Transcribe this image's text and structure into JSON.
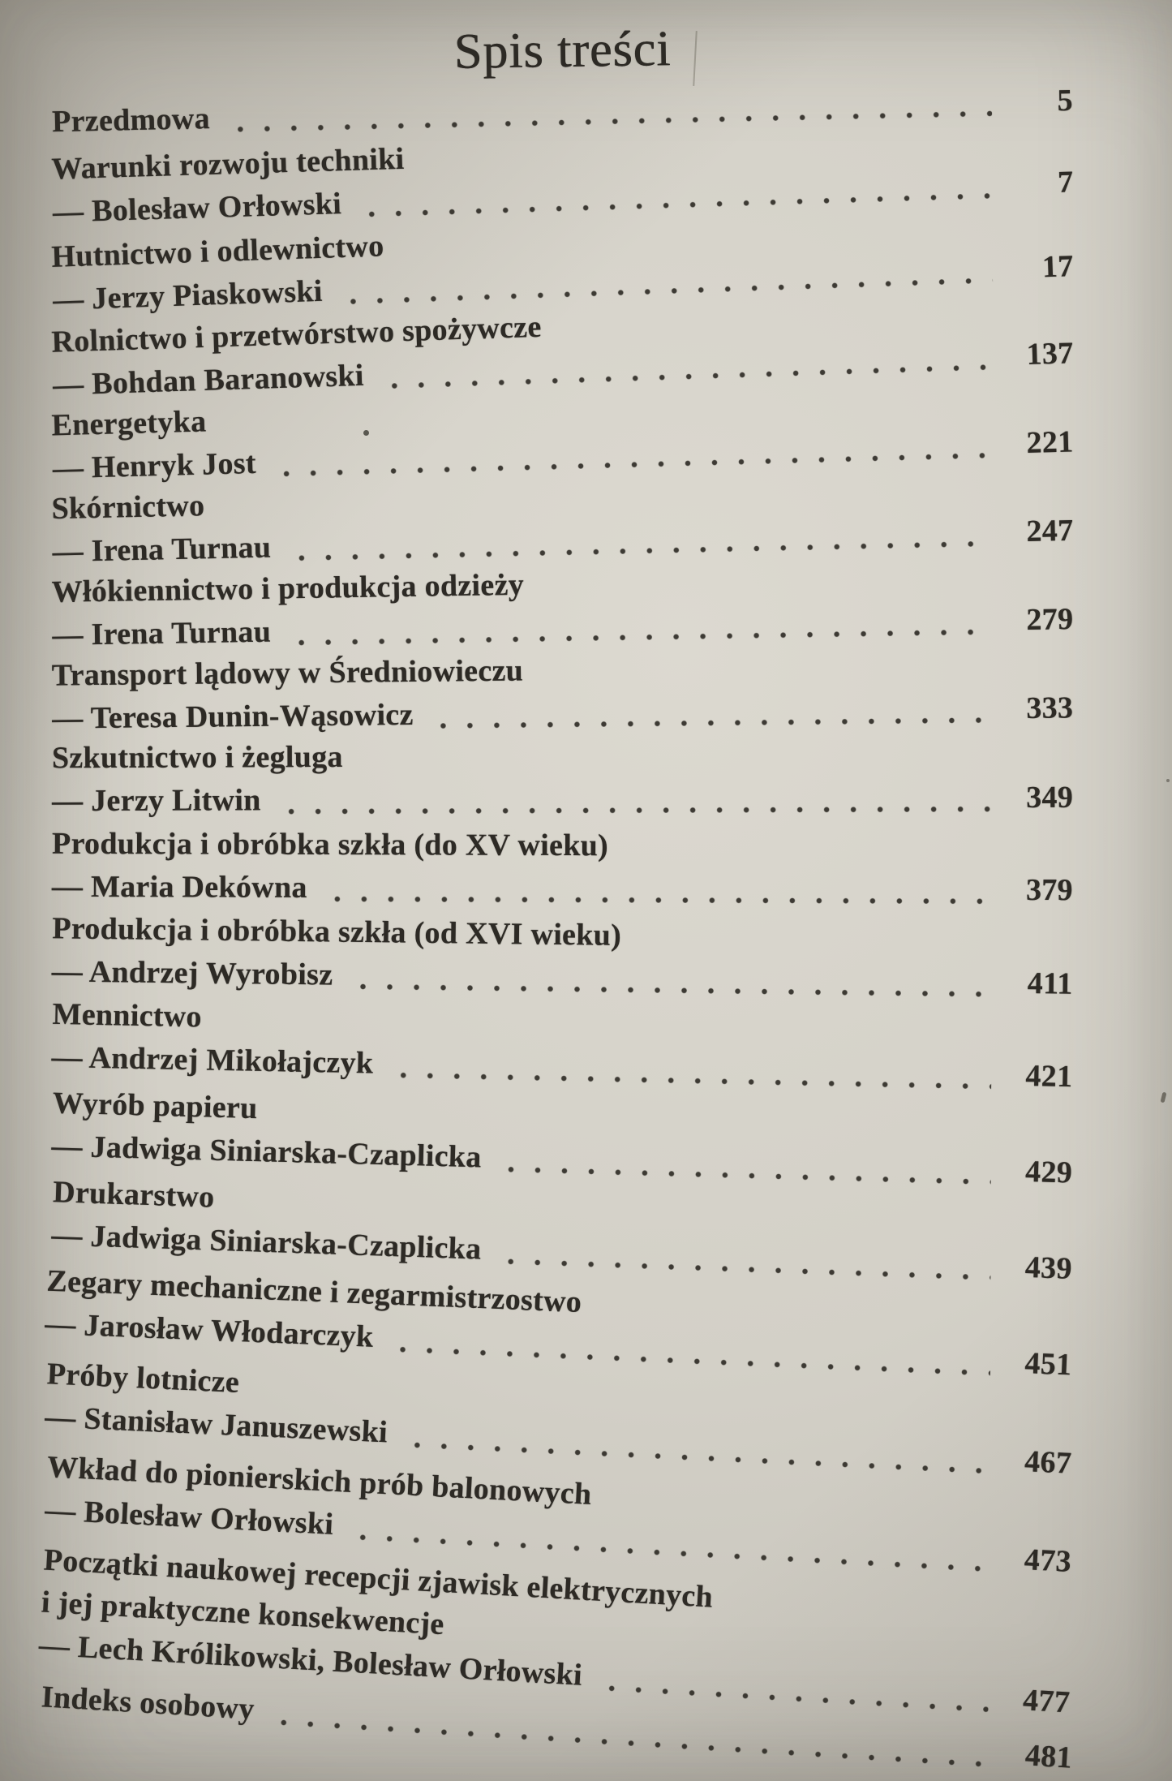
{
  "colors": {
    "ink": "#2d2a25",
    "paper": "#d3d0c7"
  },
  "page": {
    "title": "Spis treści",
    "entries": [
      {
        "title": null,
        "title2": null,
        "lead": "Przedmowa",
        "page": "5"
      },
      {
        "title": "Warunki rozwoju techniki",
        "title2": null,
        "lead": "— Bolesław Orłowski",
        "page": "7"
      },
      {
        "title": "Hutnictwo i odlewnictwo",
        "title2": null,
        "lead": "— Jerzy Piaskowski",
        "page": "17"
      },
      {
        "title": "Rolnictwo i przetwórstwo spożywcze",
        "title2": null,
        "lead": "— Bohdan Baranowski",
        "page": "137"
      },
      {
        "title": "Energetyka",
        "title2": null,
        "lead": "— Henryk Jost",
        "page": "221"
      },
      {
        "title": "Skórnictwo",
        "title2": null,
        "lead": "— Irena Turnau",
        "page": "247"
      },
      {
        "title": "Włókiennictwo i produkcja odzieży",
        "title2": null,
        "lead": "— Irena Turnau",
        "page": "279"
      },
      {
        "title": "Transport lądowy w Średniowieczu",
        "title2": null,
        "lead": "— Teresa Dunin-Wąsowicz",
        "page": "333"
      },
      {
        "title": "Szkutnictwo i żegluga",
        "title2": null,
        "lead": "— Jerzy Litwin",
        "page": "349"
      },
      {
        "title": "Produkcja i obróbka szkła (do XV wieku)",
        "title2": null,
        "lead": "— Maria Dekówna",
        "page": "379"
      },
      {
        "title": "Produkcja i obróbka szkła (od XVI wieku)",
        "title2": null,
        "lead": "— Andrzej Wyrobisz",
        "page": "411"
      },
      {
        "title": "Mennictwo",
        "title2": null,
        "lead": "— Andrzej Mikołajczyk",
        "page": "421"
      },
      {
        "title": "Wyrób papieru",
        "title2": null,
        "lead": "— Jadwiga Siniarska-Czaplicka",
        "page": "429"
      },
      {
        "title": "Drukarstwo",
        "title2": null,
        "lead": "— Jadwiga Siniarska-Czaplicka",
        "page": "439"
      },
      {
        "title": "Zegary mechaniczne i zegarmistrzostwo",
        "title2": null,
        "lead": "— Jarosław Włodarczyk",
        "page": "451"
      },
      {
        "title": "Próby lotnicze",
        "title2": null,
        "lead": "— Stanisław Januszewski",
        "page": "467"
      },
      {
        "title": "Wkład do pionierskich prób balonowych",
        "title2": null,
        "lead": "— Bolesław Orłowski",
        "page": "473"
      },
      {
        "title": "Początki naukowej recepcji zjawisk elektrycznych",
        "title2": "i jej praktyczne konsekwencje",
        "lead": "— Lech Królikowski, Bolesław Orłowski",
        "page": "477"
      },
      {
        "title": null,
        "title2": null,
        "lead": "Indeks osobowy",
        "page": "481"
      }
    ]
  }
}
